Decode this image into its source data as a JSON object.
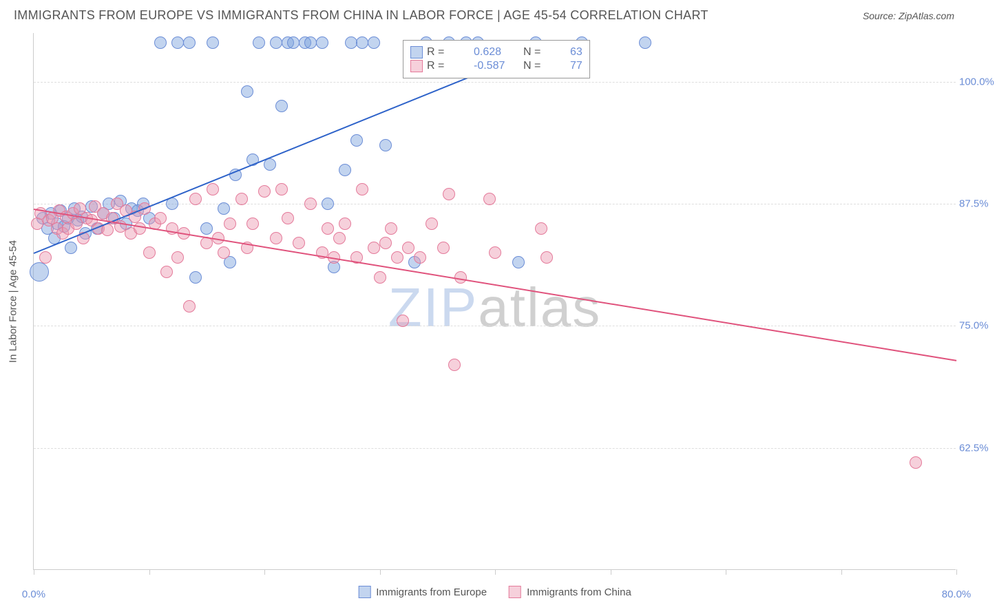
{
  "title": "IMMIGRANTS FROM EUROPE VS IMMIGRANTS FROM CHINA IN LABOR FORCE | AGE 45-54 CORRELATION CHART",
  "source_label": "Source: ",
  "source_name": "ZipAtlas.com",
  "y_axis_label": "In Labor Force | Age 45-54",
  "watermark_zip": "ZIP",
  "watermark_atlas": "atlas",
  "chart": {
    "type": "scatter",
    "background_color": "#ffffff",
    "grid_color": "#dddddd",
    "axis_color": "#cccccc",
    "label_color": "#555555",
    "tick_label_color": "#6b8dd6",
    "title_fontsize": 18,
    "label_fontsize": 15,
    "tick_fontsize": 15,
    "xlim": [
      0,
      80
    ],
    "ylim": [
      50,
      105
    ],
    "x_ticks": [
      0,
      10,
      20,
      30,
      40,
      50,
      60,
      70,
      80
    ],
    "x_tick_labels": {
      "0": "0.0%",
      "80": "80.0%"
    },
    "y_ticks": [
      62.5,
      75.0,
      87.5,
      100.0
    ],
    "y_tick_labels": [
      "62.5%",
      "75.0%",
      "87.5%",
      "100.0%"
    ],
    "legend_top_labels": {
      "r_prefix": "R = ",
      "n_prefix": "N = "
    },
    "series": [
      {
        "name": "Immigrants from Europe",
        "color_fill": "rgba(120, 160, 220, 0.45)",
        "color_stroke": "#6b8dd6",
        "marker_radius": 9,
        "R": "0.628",
        "N": "63",
        "trend": {
          "x1": 0,
          "y1": 82.5,
          "x2": 45,
          "y2": 104.0,
          "color": "#2d62c9",
          "width": 2
        },
        "points": [
          {
            "x": 0.5,
            "y": 80.5,
            "r": 14
          },
          {
            "x": 0.8,
            "y": 86.0
          },
          {
            "x": 1.2,
            "y": 85.0
          },
          {
            "x": 1.5,
            "y": 86.5
          },
          {
            "x": 1.8,
            "y": 84.0
          },
          {
            "x": 2.0,
            "y": 85.5
          },
          {
            "x": 2.3,
            "y": 86.8
          },
          {
            "x": 2.6,
            "y": 85.2
          },
          {
            "x": 3.0,
            "y": 86.0
          },
          {
            "x": 3.2,
            "y": 83.0
          },
          {
            "x": 3.5,
            "y": 87.0
          },
          {
            "x": 3.8,
            "y": 85.8
          },
          {
            "x": 4.2,
            "y": 86.2
          },
          {
            "x": 4.5,
            "y": 84.5
          },
          {
            "x": 5.0,
            "y": 87.2
          },
          {
            "x": 5.5,
            "y": 85.0
          },
          {
            "x": 6.0,
            "y": 86.5
          },
          {
            "x": 6.5,
            "y": 87.5
          },
          {
            "x": 7.0,
            "y": 86.0
          },
          {
            "x": 7.5,
            "y": 87.8
          },
          {
            "x": 8.0,
            "y": 85.5
          },
          {
            "x": 8.5,
            "y": 87.0
          },
          {
            "x": 9.0,
            "y": 86.8
          },
          {
            "x": 9.5,
            "y": 87.5
          },
          {
            "x": 10.0,
            "y": 86.0
          },
          {
            "x": 11.0,
            "y": 104.0
          },
          {
            "x": 12.0,
            "y": 87.5
          },
          {
            "x": 12.5,
            "y": 104.0
          },
          {
            "x": 13.5,
            "y": 104.0
          },
          {
            "x": 14.0,
            "y": 80.0
          },
          {
            "x": 15.0,
            "y": 85.0
          },
          {
            "x": 15.5,
            "y": 104.0
          },
          {
            "x": 16.5,
            "y": 87.0
          },
          {
            "x": 17.0,
            "y": 81.5
          },
          {
            "x": 17.5,
            "y": 90.5
          },
          {
            "x": 18.5,
            "y": 99.0
          },
          {
            "x": 19.0,
            "y": 92.0
          },
          {
            "x": 19.5,
            "y": 104.0
          },
          {
            "x": 20.5,
            "y": 91.5
          },
          {
            "x": 21.0,
            "y": 104.0
          },
          {
            "x": 21.5,
            "y": 97.5
          },
          {
            "x": 22.0,
            "y": 104.0
          },
          {
            "x": 22.5,
            "y": 104.0
          },
          {
            "x": 23.5,
            "y": 104.0
          },
          {
            "x": 24.0,
            "y": 104.0
          },
          {
            "x": 25.0,
            "y": 104.0
          },
          {
            "x": 25.5,
            "y": 87.5
          },
          {
            "x": 26.0,
            "y": 81.0
          },
          {
            "x": 27.0,
            "y": 91.0
          },
          {
            "x": 27.5,
            "y": 104.0
          },
          {
            "x": 28.0,
            "y": 94.0
          },
          {
            "x": 28.5,
            "y": 104.0
          },
          {
            "x": 29.5,
            "y": 104.0
          },
          {
            "x": 30.5,
            "y": 93.5
          },
          {
            "x": 33.0,
            "y": 81.5
          },
          {
            "x": 34.0,
            "y": 104.0
          },
          {
            "x": 36.0,
            "y": 104.0
          },
          {
            "x": 37.5,
            "y": 104.0
          },
          {
            "x": 38.5,
            "y": 104.0
          },
          {
            "x": 42.0,
            "y": 81.5
          },
          {
            "x": 43.5,
            "y": 104.0
          },
          {
            "x": 47.5,
            "y": 104.0
          },
          {
            "x": 53.0,
            "y": 104.0
          }
        ]
      },
      {
        "name": "Immigrants from China",
        "color_fill": "rgba(235, 150, 175, 0.45)",
        "color_stroke": "#e47a9a",
        "marker_radius": 9,
        "R": "-0.587",
        "N": "77",
        "trend": {
          "x1": 0,
          "y1": 87.0,
          "x2": 80,
          "y2": 71.5,
          "color": "#e0527c",
          "width": 2
        },
        "points": [
          {
            "x": 0.3,
            "y": 85.5
          },
          {
            "x": 0.6,
            "y": 86.5
          },
          {
            "x": 1.0,
            "y": 82.0
          },
          {
            "x": 1.3,
            "y": 85.8
          },
          {
            "x": 1.6,
            "y": 86.0
          },
          {
            "x": 2.0,
            "y": 85.0
          },
          {
            "x": 2.2,
            "y": 86.8
          },
          {
            "x": 2.5,
            "y": 84.5
          },
          {
            "x": 2.8,
            "y": 86.2
          },
          {
            "x": 3.0,
            "y": 85.0
          },
          {
            "x": 3.4,
            "y": 86.5
          },
          {
            "x": 3.7,
            "y": 85.5
          },
          {
            "x": 4.0,
            "y": 87.0
          },
          {
            "x": 4.3,
            "y": 84.0
          },
          {
            "x": 4.6,
            "y": 86.0
          },
          {
            "x": 5.0,
            "y": 85.8
          },
          {
            "x": 5.3,
            "y": 87.2
          },
          {
            "x": 5.6,
            "y": 85.0
          },
          {
            "x": 6.0,
            "y": 86.5
          },
          {
            "x": 6.4,
            "y": 84.8
          },
          {
            "x": 6.8,
            "y": 86.0
          },
          {
            "x": 7.2,
            "y": 87.5
          },
          {
            "x": 7.5,
            "y": 85.2
          },
          {
            "x": 8.0,
            "y": 86.8
          },
          {
            "x": 8.4,
            "y": 84.5
          },
          {
            "x": 8.8,
            "y": 86.2
          },
          {
            "x": 9.2,
            "y": 85.0
          },
          {
            "x": 9.6,
            "y": 87.0
          },
          {
            "x": 10.0,
            "y": 82.5
          },
          {
            "x": 10.5,
            "y": 85.5
          },
          {
            "x": 11.0,
            "y": 86.0
          },
          {
            "x": 11.5,
            "y": 80.5
          },
          {
            "x": 12.0,
            "y": 85.0
          },
          {
            "x": 12.5,
            "y": 82.0
          },
          {
            "x": 13.0,
            "y": 84.5
          },
          {
            "x": 13.5,
            "y": 77.0
          },
          {
            "x": 14.0,
            "y": 88.0
          },
          {
            "x": 15.0,
            "y": 83.5
          },
          {
            "x": 15.5,
            "y": 89.0
          },
          {
            "x": 16.0,
            "y": 84.0
          },
          {
            "x": 16.5,
            "y": 82.5
          },
          {
            "x": 17.0,
            "y": 85.5
          },
          {
            "x": 18.0,
            "y": 88.0
          },
          {
            "x": 18.5,
            "y": 83.0
          },
          {
            "x": 19.0,
            "y": 85.5
          },
          {
            "x": 20.0,
            "y": 88.8
          },
          {
            "x": 21.0,
            "y": 84.0
          },
          {
            "x": 21.5,
            "y": 89.0
          },
          {
            "x": 22.0,
            "y": 86.0
          },
          {
            "x": 23.0,
            "y": 83.5
          },
          {
            "x": 24.0,
            "y": 87.5
          },
          {
            "x": 25.0,
            "y": 82.5
          },
          {
            "x": 25.5,
            "y": 85.0
          },
          {
            "x": 26.0,
            "y": 82.0
          },
          {
            "x": 26.5,
            "y": 84.0
          },
          {
            "x": 27.0,
            "y": 85.5
          },
          {
            "x": 28.0,
            "y": 82.0
          },
          {
            "x": 28.5,
            "y": 89.0
          },
          {
            "x": 29.5,
            "y": 83.0
          },
          {
            "x": 30.0,
            "y": 80.0
          },
          {
            "x": 30.5,
            "y": 83.5
          },
          {
            "x": 31.0,
            "y": 85.0
          },
          {
            "x": 31.5,
            "y": 82.0
          },
          {
            "x": 32.0,
            "y": 75.5
          },
          {
            "x": 32.5,
            "y": 83.0
          },
          {
            "x": 33.5,
            "y": 82.0
          },
          {
            "x": 34.5,
            "y": 85.5
          },
          {
            "x": 35.5,
            "y": 83.0
          },
          {
            "x": 36.0,
            "y": 88.5
          },
          {
            "x": 36.5,
            "y": 71.0
          },
          {
            "x": 37.0,
            "y": 80.0
          },
          {
            "x": 39.5,
            "y": 88.0
          },
          {
            "x": 40.0,
            "y": 82.5
          },
          {
            "x": 44.0,
            "y": 85.0
          },
          {
            "x": 44.5,
            "y": 82.0
          },
          {
            "x": 76.5,
            "y": 61.0
          }
        ]
      }
    ]
  },
  "legend_bottom": [
    {
      "label": "Immigrants from Europe",
      "fill": "rgba(120, 160, 220, 0.45)",
      "stroke": "#6b8dd6"
    },
    {
      "label": "Immigrants from China",
      "fill": "rgba(235, 150, 175, 0.45)",
      "stroke": "#e47a9a"
    }
  ]
}
